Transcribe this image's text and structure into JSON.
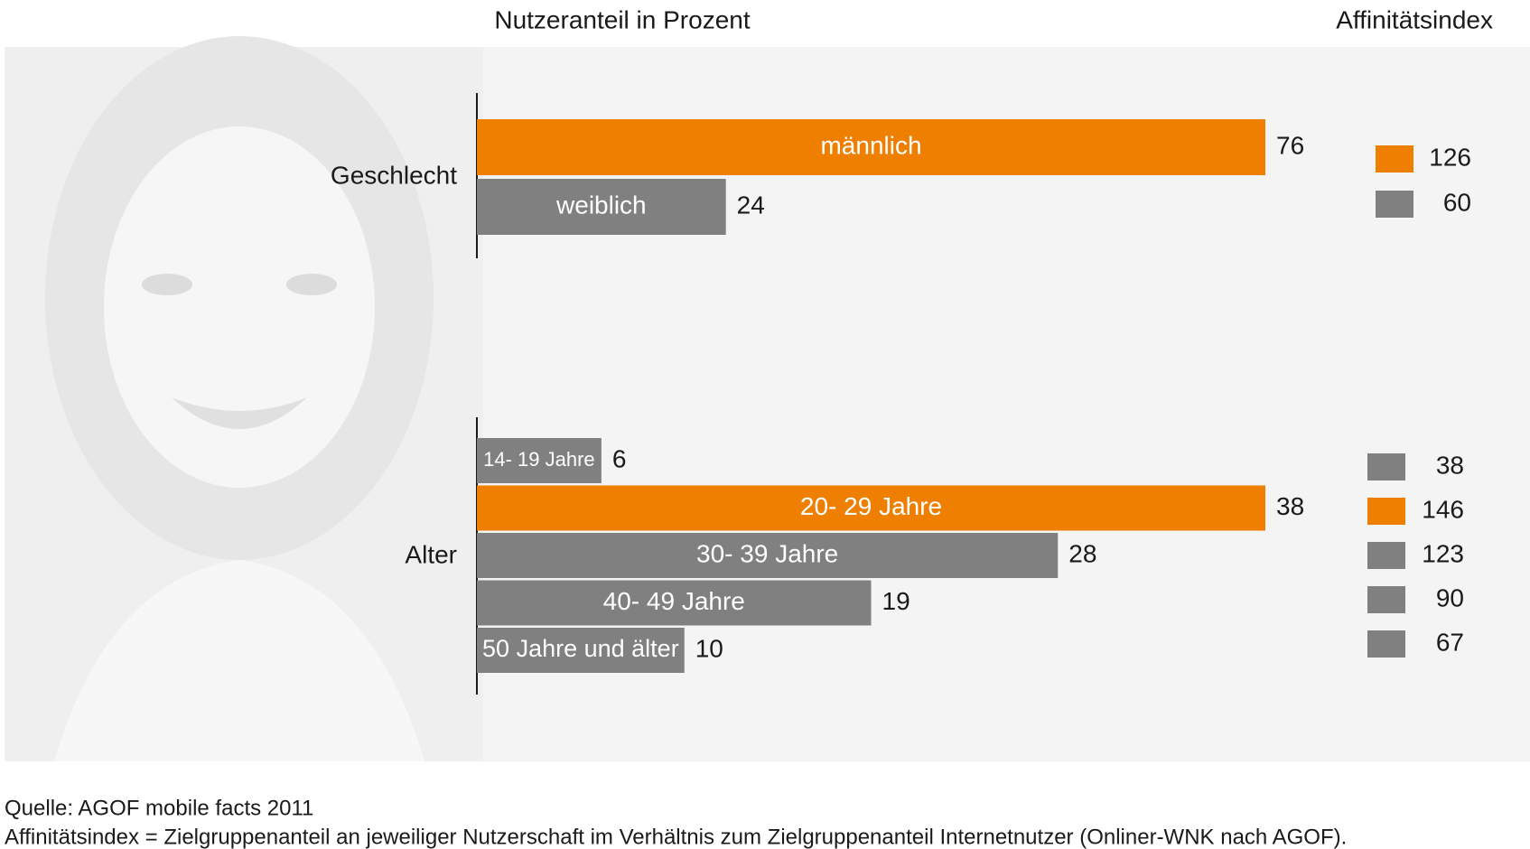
{
  "x_label": "Nutzeranteil in Prozent",
  "affinity_label": "Affinitätsindex",
  "source": "Quelle: AGOF mobile facts 2011",
  "note": "Affinitätsindex = Zielgruppenanteil an jeweiliger Nutzerschaft im Verhältnis zum Zielgruppenanteil Internetnutzer (Onliner-WNK nach AGOF).",
  "chart_data": [
    {
      "type": "bar",
      "orientation": "horizontal",
      "title": "Geschlecht",
      "categories": [
        "männlich",
        "weiblich"
      ],
      "values": [
        76,
        24
      ],
      "colors": [
        "#ee7f00",
        "#808080"
      ],
      "affinity": [
        126,
        60
      ],
      "xlim": [
        0,
        76
      ]
    },
    {
      "type": "bar",
      "orientation": "horizontal",
      "title": "Alter",
      "categories": [
        "14- 19 Jahre",
        "20- 29 Jahre",
        "30- 39 Jahre",
        "40- 49 Jahre",
        "50 Jahre und älter"
      ],
      "values": [
        6,
        38,
        28,
        19,
        10
      ],
      "colors": [
        "#808080",
        "#ee7f00",
        "#808080",
        "#808080",
        "#808080"
      ],
      "affinity": [
        38,
        146,
        123,
        90,
        67
      ],
      "xlim": [
        0,
        38
      ]
    }
  ]
}
